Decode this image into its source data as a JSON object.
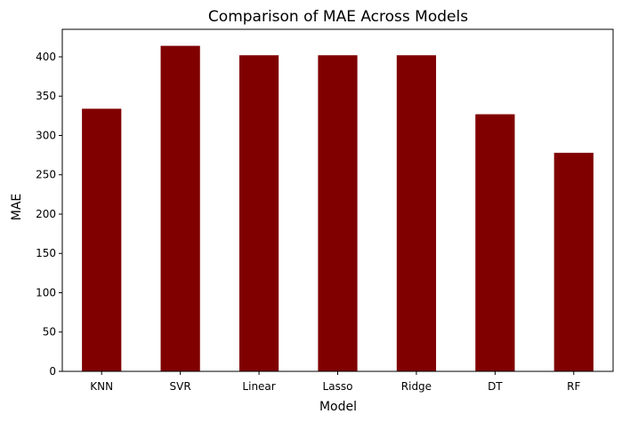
{
  "chart_data": {
    "type": "bar",
    "title": "Comparison of MAE Across Models",
    "xlabel": "Model",
    "ylabel": "MAE",
    "categories": [
      "KNN",
      "SVR",
      "Linear",
      "Lasso",
      "Ridge",
      "DT",
      "RF"
    ],
    "values": [
      334,
      414,
      402,
      402,
      402,
      327,
      278
    ],
    "ylim": [
      0,
      435
    ],
    "yticks": [
      0,
      50,
      100,
      150,
      200,
      250,
      300,
      350,
      400
    ],
    "grid": false,
    "legend": "none",
    "bar_color": "#800000"
  }
}
